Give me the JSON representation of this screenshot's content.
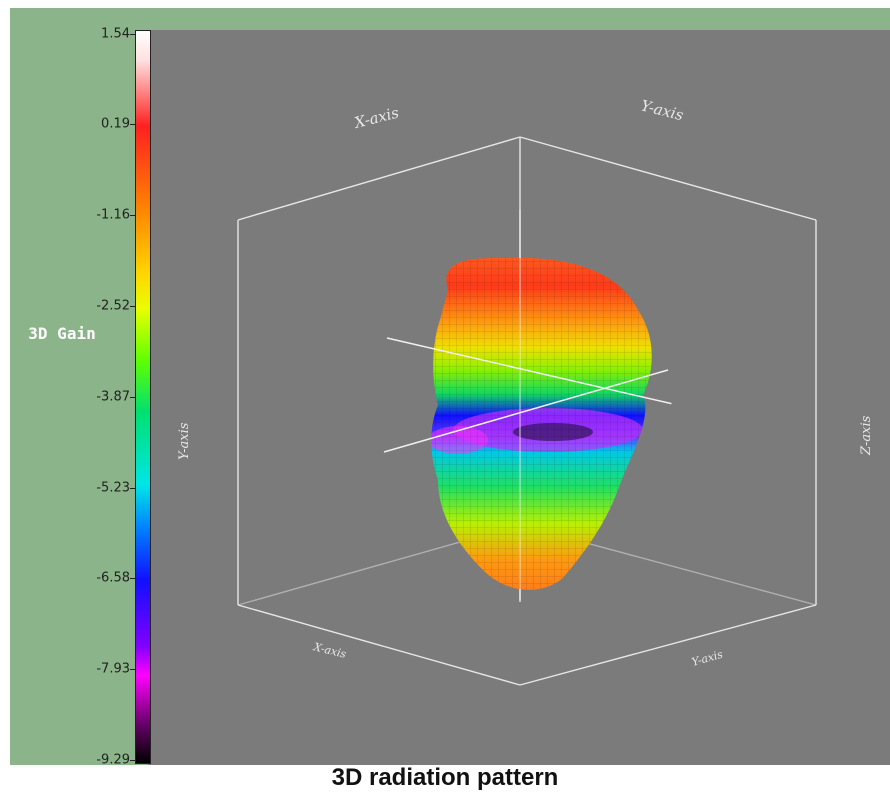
{
  "chart_data": {
    "type": "3d-surface",
    "title": "3D radiation pattern",
    "colorbar": {
      "label": "3D Gain",
      "ticks": [
        1.54,
        0.19,
        -1.16,
        -2.52,
        -3.87,
        -5.23,
        -6.58,
        -7.93,
        -9.29
      ],
      "tick_labels": [
        "1.54",
        "0.19",
        "-1.16",
        "-2.52",
        "-3.87",
        "-5.23",
        "-6.58",
        "-7.93",
        "-9.29"
      ],
      "range": [
        -9.29,
        1.54
      ],
      "colormap": [
        "#ffffff",
        "#ff2020",
        "#ff8a00",
        "#ffd400",
        "#60ff00",
        "#00e6e6",
        "#1010ff",
        "#ff00ff",
        "#000000"
      ]
    },
    "axis_labels": {
      "x": "X-axis",
      "y": "Y-axis",
      "z": "Z-axis",
      "vertical": "Y-axis",
      "bottom_left": "X-axis",
      "bottom_right": "Y-axis"
    }
  },
  "colors": {
    "panel_background": "#8cb48a",
    "plot_background": "#7b7b7b",
    "wireframe": "#e0e0e0"
  }
}
